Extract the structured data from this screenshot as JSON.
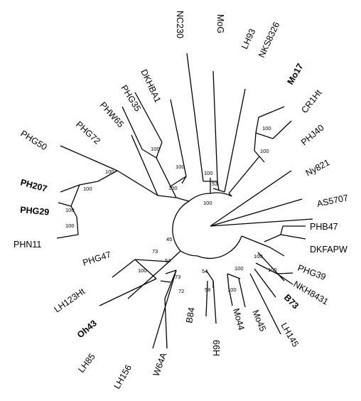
{
  "tree": {
    "tree_type": "circular phylogenetic dendrogram",
    "colors": {
      "branches": "#000000",
      "text": "#000000",
      "background": "#ffffff"
    },
    "leaves": [
      {
        "id": "nc230",
        "label": "NC230",
        "bold": false
      },
      {
        "id": "mog",
        "label": "MoG",
        "bold": false
      },
      {
        "id": "lh93",
        "label": "LH93",
        "bold": false
      },
      {
        "id": "nks8326",
        "label": "NKS8326",
        "bold": false
      },
      {
        "id": "mo17",
        "label": "Mo17",
        "bold": true
      },
      {
        "id": "cr1ht",
        "label": "CR1Ht",
        "bold": false
      },
      {
        "id": "phj40",
        "label": "PHJ40",
        "bold": false
      },
      {
        "id": "ny821",
        "label": "Ny821",
        "bold": false
      },
      {
        "id": "as5707",
        "label": "AS5707",
        "bold": false
      },
      {
        "id": "phb47",
        "label": "PHB47",
        "bold": false
      },
      {
        "id": "dkfapw",
        "label": "DKFAPW",
        "bold": false
      },
      {
        "id": "phg39",
        "label": "PHG39",
        "bold": false
      },
      {
        "id": "nkh8431",
        "label": "NKH8431",
        "bold": false
      },
      {
        "id": "b73",
        "label": "B73",
        "bold": true
      },
      {
        "id": "lh145",
        "label": "LH145",
        "bold": false
      },
      {
        "id": "mo45",
        "label": "Mo45",
        "bold": false
      },
      {
        "id": "mo44",
        "label": "Mo44",
        "bold": false
      },
      {
        "id": "66h",
        "label": "66H",
        "bold": false
      },
      {
        "id": "b84",
        "label": "B84",
        "bold": false
      },
      {
        "id": "w64a",
        "label": "W64A",
        "bold": false
      },
      {
        "id": "lh156",
        "label": "LH156",
        "bold": false
      },
      {
        "id": "lh85",
        "label": "LH85",
        "bold": false
      },
      {
        "id": "oh43",
        "label": "Oh43",
        "bold": true
      },
      {
        "id": "lh123ht",
        "label": "LH123Ht",
        "bold": false
      },
      {
        "id": "phg47",
        "label": "PHG47",
        "bold": false
      },
      {
        "id": "phn11",
        "label": "PHN11",
        "bold": false
      },
      {
        "id": "phg29",
        "label": "PHG29",
        "bold": true
      },
      {
        "id": "ph207",
        "label": "PH207",
        "bold": true
      },
      {
        "id": "phg50",
        "label": "PHG50",
        "bold": false
      },
      {
        "id": "phg72",
        "label": "PHG72",
        "bold": false
      },
      {
        "id": "phw65",
        "label": "PHW65",
        "bold": false
      },
      {
        "id": "phg35",
        "label": "PHG35",
        "bold": false
      },
      {
        "id": "dkhba1",
        "label": "DKHBA1",
        "bold": false
      }
    ],
    "bootstrap_values": [
      {
        "id": "bs-100-mo17",
        "value": "100"
      },
      {
        "id": "bs-100-nks",
        "value": "100"
      },
      {
        "id": "bs-53",
        "value": "53"
      },
      {
        "id": "bs-100-mog",
        "value": "100"
      },
      {
        "id": "bs-100-lh93",
        "value": "100"
      },
      {
        "id": "bs-100-phg35",
        "value": "100"
      },
      {
        "id": "bs-100-phw65",
        "value": "100"
      },
      {
        "id": "bs-100-phg72",
        "value": "100"
      },
      {
        "id": "bs-100-ph207",
        "value": "100"
      },
      {
        "id": "bs-100-phg29",
        "value": "100"
      },
      {
        "id": "bs-100-phn11",
        "value": "100"
      },
      {
        "id": "bs-100-dkhba1",
        "value": "100"
      },
      {
        "id": "bs-45",
        "value": "45"
      },
      {
        "id": "bs-73-upper",
        "value": "73"
      },
      {
        "id": "bs-54-left",
        "value": "54"
      },
      {
        "id": "bs-100-lh123",
        "value": "100"
      },
      {
        "id": "bs-73-lower",
        "value": "73"
      },
      {
        "id": "bs-72",
        "value": "72"
      },
      {
        "id": "bs-54-center",
        "value": "54"
      },
      {
        "id": "bs-58",
        "value": "58"
      },
      {
        "id": "bs-100-mo44",
        "value": "100"
      },
      {
        "id": "bs-100-mo45",
        "value": "100"
      },
      {
        "id": "bs-100-phg39",
        "value": "100"
      },
      {
        "id": "bs-100-nkh",
        "value": "100"
      }
    ]
  }
}
